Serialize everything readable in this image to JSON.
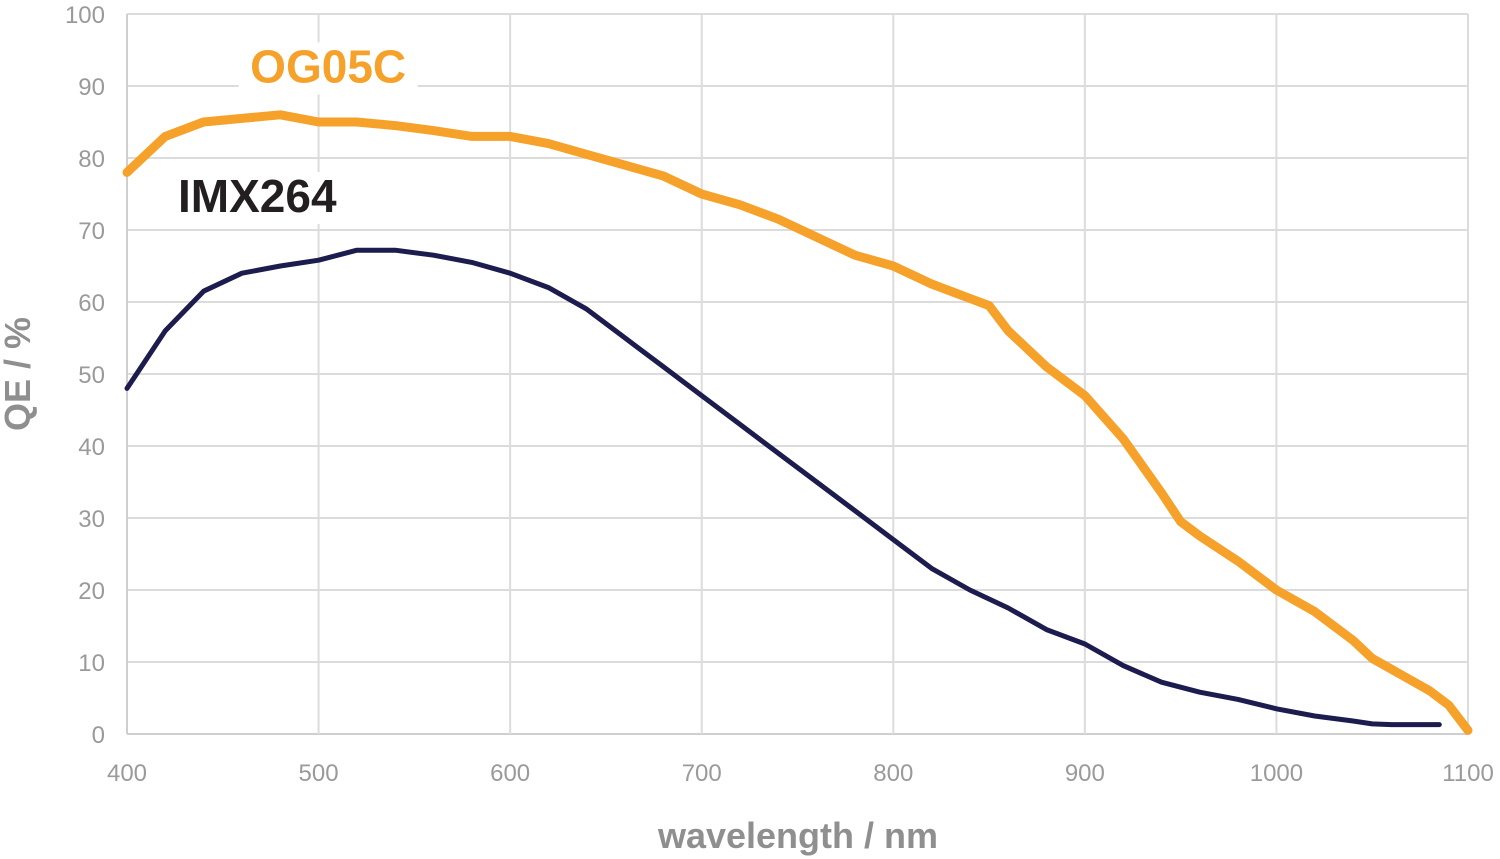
{
  "chart_data": {
    "type": "line",
    "title": "",
    "xlabel": "wavelength / nm",
    "ylabel": "QE / %",
    "xlim": [
      400,
      1100
    ],
    "ylim": [
      0,
      100
    ],
    "x_ticks": [
      400,
      500,
      600,
      700,
      800,
      900,
      1000,
      1100
    ],
    "y_ticks": [
      0,
      10,
      20,
      30,
      40,
      50,
      60,
      70,
      80,
      90,
      100
    ],
    "grid": true,
    "legend": "inline labels",
    "series": [
      {
        "name": "OG05C",
        "color": "#f5a12a",
        "label_at": [
          505,
          90.5
        ],
        "x": [
          400,
          420,
          440,
          460,
          480,
          500,
          520,
          540,
          560,
          580,
          600,
          620,
          640,
          660,
          680,
          700,
          720,
          740,
          760,
          780,
          800,
          820,
          840,
          850,
          860,
          880,
          900,
          920,
          940,
          950,
          960,
          980,
          1000,
          1020,
          1040,
          1050,
          1060,
          1080,
          1090,
          1100
        ],
        "y": [
          78,
          83,
          85,
          85.5,
          86,
          85,
          85,
          84.5,
          83.8,
          83,
          83,
          82,
          80.5,
          79,
          77.5,
          75,
          73.5,
          71.5,
          69,
          66.5,
          65,
          62.5,
          60.5,
          59.5,
          56,
          51,
          47,
          41,
          33.5,
          29.5,
          27.5,
          24,
          20,
          17,
          13,
          10.5,
          9,
          6,
          4,
          0.5
        ]
      },
      {
        "name": "IMX264",
        "color": "#1c1c4e",
        "label_at": [
          468,
          72.5
        ],
        "x": [
          400,
          420,
          440,
          460,
          480,
          500,
          520,
          540,
          560,
          580,
          600,
          620,
          640,
          660,
          680,
          700,
          720,
          740,
          760,
          780,
          800,
          820,
          840,
          860,
          880,
          900,
          920,
          940,
          960,
          980,
          1000,
          1020,
          1040,
          1050,
          1060,
          1070,
          1085
        ],
        "y": [
          48,
          56,
          61.5,
          64,
          65,
          65.8,
          67.2,
          67.2,
          66.5,
          65.5,
          64,
          62,
          59,
          55,
          51,
          47,
          43,
          39,
          35,
          31,
          27,
          23,
          20,
          17.5,
          14.5,
          12.5,
          9.5,
          7.2,
          5.8,
          4.8,
          3.5,
          2.5,
          1.8,
          1.4,
          1.3,
          1.3,
          1.3
        ]
      }
    ]
  }
}
